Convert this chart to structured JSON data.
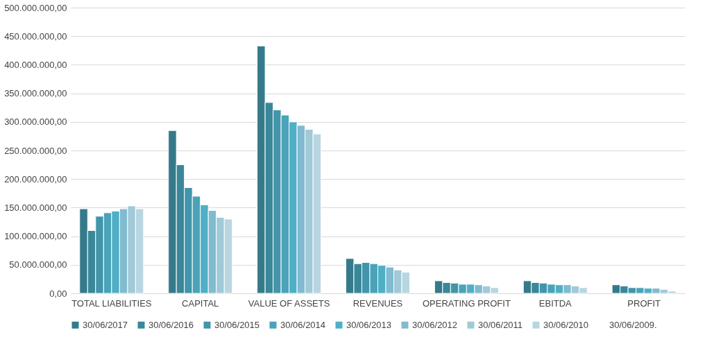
{
  "chart_data": {
    "type": "bar",
    "categories": [
      "TOTAL LIABILITIES",
      "CAPITAL",
      "VALUE OF ASSETS",
      "REVENUES",
      "OPERATING PROFIT",
      "EBITDA",
      "PROFIT"
    ],
    "series": [
      {
        "name": "30/06/2017",
        "color": "#357a8a",
        "values": [
          148000000,
          285000000,
          433000000,
          61000000,
          22000000,
          22000000,
          15000000
        ]
      },
      {
        "name": "30/06/2016",
        "color": "#3a8799",
        "values": [
          110000000,
          225000000,
          334000000,
          52000000,
          19000000,
          19000000,
          13000000
        ]
      },
      {
        "name": "30/06/2015",
        "color": "#4295aa",
        "values": [
          135000000,
          185000000,
          321000000,
          54000000,
          18000000,
          18000000,
          10000000
        ]
      },
      {
        "name": "30/06/2014",
        "color": "#4aa3b8",
        "values": [
          141000000,
          170000000,
          312000000,
          52000000,
          16000000,
          16000000,
          10000000
        ]
      },
      {
        "name": "30/06/2013",
        "color": "#4eafc6",
        "values": [
          144000000,
          155000000,
          300000000,
          49000000,
          16000000,
          15000000,
          9000000
        ]
      },
      {
        "name": "30/06/2012",
        "color": "#80bbcf",
        "values": [
          148000000,
          145000000,
          294000000,
          46000000,
          15000000,
          15000000,
          9000000
        ]
      },
      {
        "name": "30/06/2011",
        "color": "#a1c9d8",
        "values": [
          153000000,
          133000000,
          287000000,
          41000000,
          13000000,
          13000000,
          7000000
        ]
      },
      {
        "name": "30/06/2010",
        "color": "#b8d6e1",
        "values": [
          148000000,
          130000000,
          279000000,
          37000000,
          10000000,
          10000000,
          4000000
        ]
      },
      {
        "name": "30/06/2009.",
        "values": [
          null,
          null,
          null,
          null,
          null,
          null,
          null
        ]
      }
    ],
    "ylim": [
      0,
      500000000
    ],
    "yticks": [
      {
        "value": 0,
        "label": "0,00"
      },
      {
        "value": 50000000,
        "label": "50.000.000,00"
      },
      {
        "value": 100000000,
        "label": "100.000.000,00"
      },
      {
        "value": 150000000,
        "label": "150.000.000,00"
      },
      {
        "value": 200000000,
        "label": "200.000.000,00"
      },
      {
        "value": 250000000,
        "label": "250.000.000,00"
      },
      {
        "value": 300000000,
        "label": "300.000.000,00"
      },
      {
        "value": 350000000,
        "label": "350.000.000,00"
      },
      {
        "value": 400000000,
        "label": "400.000.000,00"
      },
      {
        "value": 450000000,
        "label": "450.000.000,00"
      },
      {
        "value": 500000000,
        "label": "500.000.000,00"
      }
    ],
    "grid": "y",
    "legend": "bottom"
  }
}
